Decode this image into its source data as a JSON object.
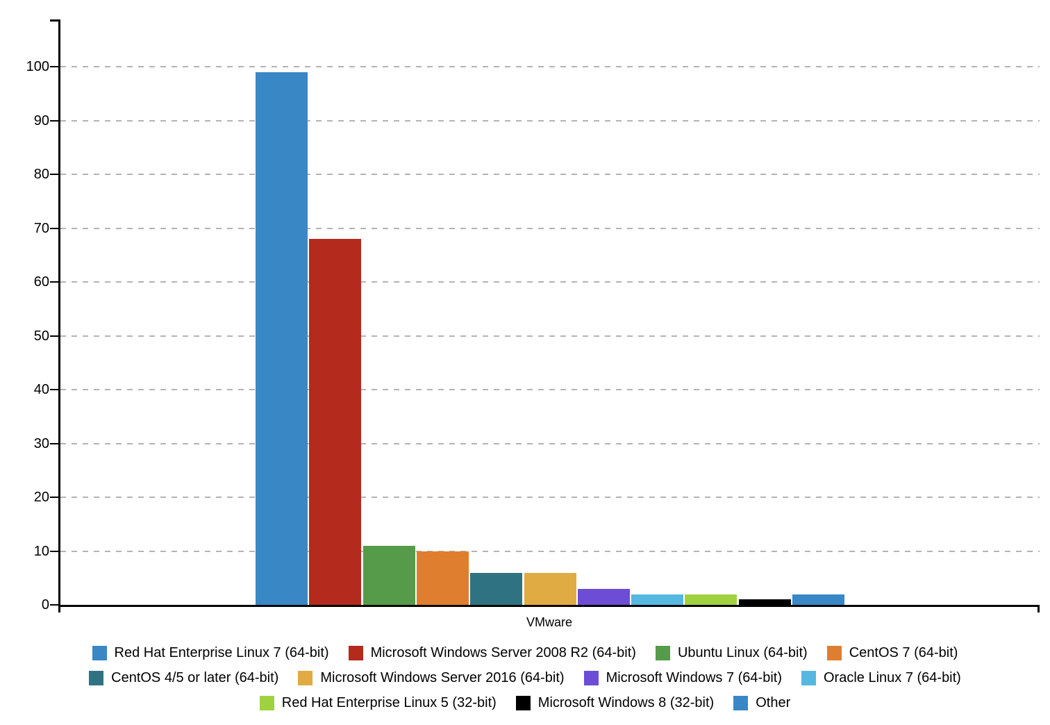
{
  "chart_data": {
    "type": "bar",
    "categories": [
      "VMware"
    ],
    "series": [
      {
        "name": "Red Hat Enterprise Linux 7 (64-bit)",
        "color": "#3a87c6",
        "values": [
          99
        ]
      },
      {
        "name": "Microsoft Windows Server 2008 R2 (64-bit)",
        "color": "#b42a1c",
        "values": [
          68
        ]
      },
      {
        "name": "Ubuntu Linux (64-bit)",
        "color": "#559b49",
        "values": [
          11
        ]
      },
      {
        "name": "CentOS 7 (64-bit)",
        "color": "#e07e30",
        "values": [
          10
        ]
      },
      {
        "name": "CentOS 4/5 or later (64-bit)",
        "color": "#2f7382",
        "values": [
          6
        ]
      },
      {
        "name": "Microsoft Windows Server 2016 (64-bit)",
        "color": "#e0ab42",
        "values": [
          6
        ]
      },
      {
        "name": "Microsoft Windows 7 (64-bit)",
        "color": "#6d4cd6",
        "values": [
          3
        ]
      },
      {
        "name": "Oracle Linux 7 (64-bit)",
        "color": "#56b8e1",
        "values": [
          2
        ]
      },
      {
        "name": "Red Hat Enterprise Linux 5 (32-bit)",
        "color": "#a0d23f",
        "values": [
          2
        ]
      },
      {
        "name": "Microsoft Windows 8 (32-bit)",
        "color": "#000000",
        "values": [
          1
        ]
      },
      {
        "name": "Other",
        "color": "#3a87c6",
        "values": [
          2
        ]
      }
    ],
    "title": "",
    "xlabel": "VMware",
    "ylabel": "",
    "ylim": [
      0,
      108
    ],
    "yticks": [
      0,
      10,
      20,
      30,
      40,
      50,
      60,
      70,
      80,
      90,
      100
    ],
    "grid": "horizontal-dashed",
    "gridline_color": "#b3b3b3",
    "axis_color": "#000000",
    "legend_position": "bottom",
    "legend_rows": [
      [
        0,
        1,
        2,
        3
      ],
      [
        4,
        5,
        6,
        7
      ],
      [
        8,
        9,
        10
      ]
    ]
  }
}
